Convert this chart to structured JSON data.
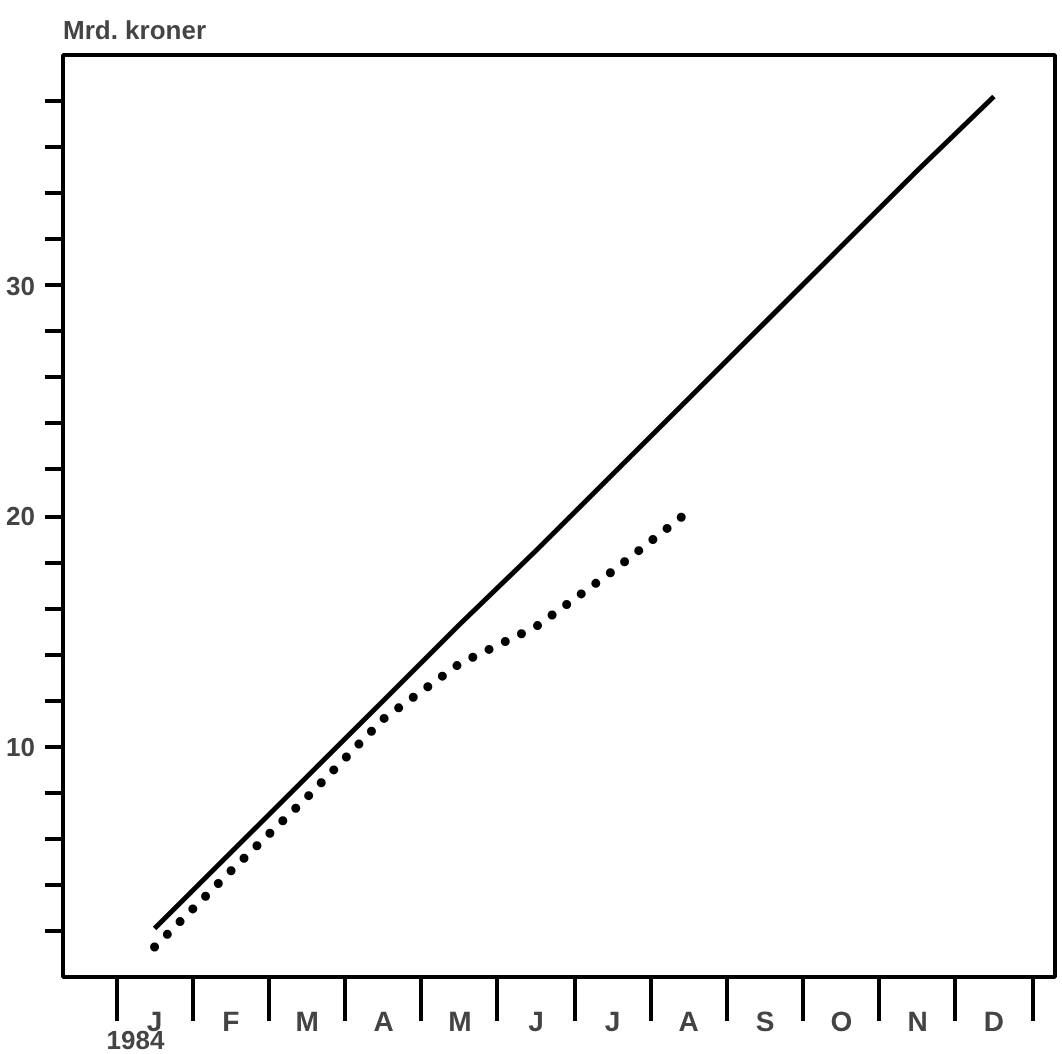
{
  "chart_data": {
    "type": "line",
    "ylabel": "Mrd. kroner",
    "annotations": [
      "1984"
    ],
    "categories": [
      "J",
      "F",
      "M",
      "A",
      "M",
      "J",
      "J",
      "A",
      "S",
      "O",
      "N",
      "D"
    ],
    "ylim": [
      0,
      40
    ],
    "yticks": [
      {
        "value": 2,
        "label": null
      },
      {
        "value": 4,
        "label": null
      },
      {
        "value": 6,
        "label": null
      },
      {
        "value": 8,
        "label": null
      },
      10,
      {
        "value": 12,
        "label": null
      },
      {
        "value": 14,
        "label": null
      },
      {
        "value": 16,
        "label": null
      },
      {
        "value": 18,
        "label": null
      },
      20,
      {
        "value": 22,
        "label": null
      },
      {
        "value": 24,
        "label": null
      },
      {
        "value": 26,
        "label": null
      },
      {
        "value": 28,
        "label": null
      },
      30,
      {
        "value": 32,
        "label": null
      },
      {
        "value": 34,
        "label": null
      },
      {
        "value": 36,
        "label": null
      },
      {
        "value": 38,
        "label": null
      }
    ],
    "grid": false,
    "series": [
      {
        "color": "#000000",
        "line_style": "solid",
        "values": [
          2.1,
          5.4,
          8.7,
          12.0,
          15.3,
          18.5,
          21.8,
          25.1,
          28.4,
          31.7,
          35.0,
          38.2
        ]
      },
      {
        "color": "#000000",
        "line_style": "dotted",
        "values": [
          1.3,
          4.6,
          7.8,
          11.2,
          13.6,
          15.2,
          17.6,
          20.2,
          null,
          null,
          null,
          null
        ]
      }
    ]
  }
}
